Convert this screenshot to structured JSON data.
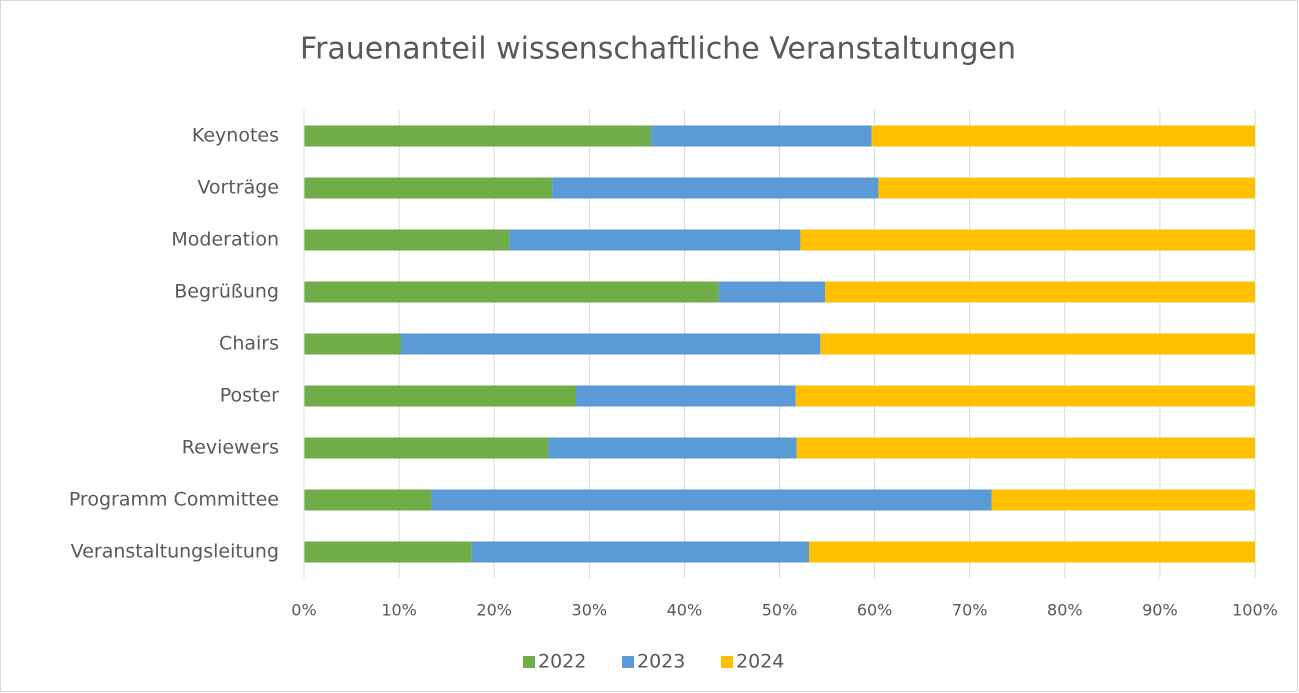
{
  "chart_data": {
    "type": "stacked_barh",
    "title": "Frauenanteil wissenschaftliche Veranstaltungen",
    "categories": [
      "Keynotes",
      "Vorträge",
      "Moderation",
      "Begrüßung",
      "Chairs",
      "Poster",
      "Reviewers",
      "Programm Committee",
      "Veranstaltungsleitung"
    ],
    "series": [
      {
        "name": "2022",
        "color": "#70ad47",
        "values": [
          36.5,
          26.1,
          21.6,
          43.6,
          10.2,
          28.6,
          25.7,
          13.4,
          17.6
        ]
      },
      {
        "name": "2023",
        "color": "#5b9bd5",
        "values": [
          23.2,
          34.3,
          30.6,
          11.2,
          44.1,
          23.1,
          26.1,
          58.9,
          35.5
        ]
      },
      {
        "name": "2024",
        "color": "#ffc000",
        "values": [
          40.3,
          39.6,
          47.8,
          45.2,
          45.7,
          48.3,
          48.2,
          27.7,
          46.9
        ]
      }
    ],
    "xlim": [
      0,
      100
    ],
    "xticks": [
      {
        "value": 0,
        "label": "0%"
      },
      {
        "value": 10,
        "label": "10%"
      },
      {
        "value": 20,
        "label": "20%"
      },
      {
        "value": 30,
        "label": "30%"
      },
      {
        "value": 40,
        "label": "40%"
      },
      {
        "value": 50,
        "label": "50%"
      },
      {
        "value": 60,
        "label": "60%"
      },
      {
        "value": 70,
        "label": "70%"
      },
      {
        "value": 80,
        "label": "80%"
      },
      {
        "value": 90,
        "label": "90%"
      },
      {
        "value": 100,
        "label": "100%"
      }
    ],
    "grid": true,
    "legend": "bottom"
  }
}
